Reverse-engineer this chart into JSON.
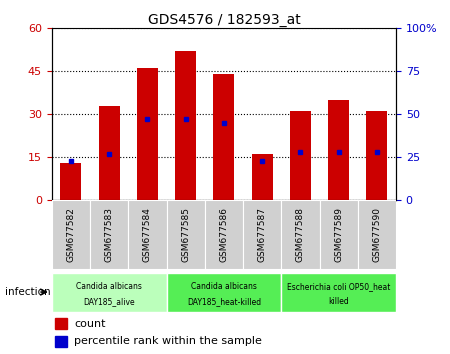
{
  "title": "GDS4576 / 182593_at",
  "samples": [
    "GSM677582",
    "GSM677583",
    "GSM677584",
    "GSM677585",
    "GSM677586",
    "GSM677587",
    "GSM677588",
    "GSM677589",
    "GSM677590"
  ],
  "counts": [
    13,
    33,
    46,
    52,
    44,
    16,
    31,
    35,
    31
  ],
  "percentile_ranks": [
    23,
    27,
    47,
    47,
    45,
    23,
    28,
    28,
    28
  ],
  "ylim_left": [
    0,
    60
  ],
  "ylim_right": [
    0,
    100
  ],
  "yticks_left": [
    0,
    15,
    30,
    45,
    60
  ],
  "yticks_right": [
    0,
    25,
    50,
    75,
    100
  ],
  "groups": [
    {
      "label1": "Candida albicans",
      "label2": "DAY185_alive",
      "start": 0,
      "end": 3,
      "color": "#bbffbb"
    },
    {
      "label1": "Candida albicans",
      "label2": "DAY185_heat-killed",
      "start": 3,
      "end": 6,
      "color": "#55ee55"
    },
    {
      "label1": "Escherichia coli OP50_heat",
      "label2": "killed",
      "start": 6,
      "end": 9,
      "color": "#55ee55"
    }
  ],
  "bar_color": "#cc0000",
  "percentile_color": "#0000cc",
  "bar_width": 0.55,
  "infection_label": "infection",
  "legend_count": "count",
  "legend_percentile": "percentile rank within the sample",
  "bg_color": "#ffffff",
  "plot_bg": "#ffffff",
  "xtick_bg": "#d0d0d0",
  "tick_label_color_left": "#cc0000",
  "tick_label_color_right": "#0000cc"
}
